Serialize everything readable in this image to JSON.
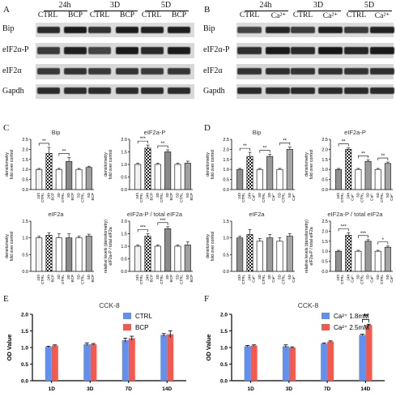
{
  "panels": {
    "A": {
      "letter": "A",
      "timepoints": [
        "24h",
        "3D",
        "5D"
      ],
      "lanes": [
        "CTRL",
        "BCP",
        "CTRL",
        "BCP",
        "CTRL",
        "BCP"
      ],
      "rows": [
        "Bip",
        "eIF2α-P",
        "eIF2α",
        "Gapdh"
      ]
    },
    "B": {
      "letter": "B",
      "timepoints": [
        "24h",
        "3D",
        "5D"
      ],
      "lanes": [
        "CTRL",
        "Ca²⁺",
        "CTRL",
        "Ca²⁺",
        "CTRL",
        "Ca²⁺"
      ],
      "rows": [
        "Bip",
        "eIF2α-P",
        "eIF2α",
        "Gapdh"
      ]
    },
    "C": {
      "letter": "C"
    },
    "D": {
      "letter": "D"
    },
    "E": {
      "letter": "E"
    },
    "F": {
      "letter": "F"
    }
  },
  "chart_data": [
    {
      "id": "C-bip",
      "type": "bar",
      "title": "Bip",
      "ylabel": "densitometry fold over control",
      "ylim": [
        0,
        2.5
      ],
      "yticks": [
        "0.0",
        "0.5",
        "1.0",
        "1.5",
        "2.0",
        "2.5"
      ],
      "categories": [
        "24h CTRL",
        "24h BCP",
        "3D CTRL",
        "3D BCP",
        "5D CTRL",
        "5D BCP"
      ],
      "values": [
        1.0,
        1.8,
        1.0,
        1.4,
        1.0,
        1.1
      ],
      "errors": [
        0.05,
        0.3,
        0.05,
        0.2,
        0.05,
        0.06
      ],
      "sig": [
        {
          "from": 0,
          "to": 1,
          "label": "**"
        },
        {
          "from": 2,
          "to": 3,
          "label": "**"
        }
      ]
    },
    {
      "id": "C-peif",
      "type": "bar",
      "title": "eIF2a-P",
      "ylabel": "densitometry fold over control",
      "ylim": [
        0,
        2.0
      ],
      "yticks": [
        "0.0",
        "0.5",
        "1.0",
        "1.5",
        "2.0"
      ],
      "categories": [
        "24h CTRL",
        "24h BCP",
        "3D CTRL",
        "3D BCP",
        "5D CTRL",
        "5D BCP"
      ],
      "values": [
        1.0,
        1.65,
        1.0,
        1.5,
        1.0,
        1.05
      ],
      "errors": [
        0.05,
        0.12,
        0.05,
        0.08,
        0.05,
        0.08
      ],
      "sig": [
        {
          "from": 0,
          "to": 1,
          "label": "***"
        },
        {
          "from": 2,
          "to": 3,
          "label": "**"
        }
      ]
    },
    {
      "id": "C-eif",
      "type": "bar",
      "title": "eIF2a",
      "ylabel": "densitometry fold over control",
      "ylim": [
        0,
        1.5
      ],
      "yticks": [
        "0.0",
        "0.5",
        "1.0",
        "1.5"
      ],
      "categories": [
        "24h CTRL",
        "24h BCP",
        "3D CTRL",
        "3D BCP",
        "5D CTRL",
        "5D BCP"
      ],
      "values": [
        1.0,
        1.08,
        1.0,
        1.0,
        1.0,
        1.05
      ],
      "errors": [
        0.05,
        0.07,
        0.12,
        0.12,
        0.05,
        0.06
      ],
      "sig": []
    },
    {
      "id": "C-ratio",
      "type": "bar",
      "title": "eIF2a-P / total eIF2a",
      "ylabel": "relative levels (densitometry) eIF2a-P / total eIF2a",
      "ylim": [
        0,
        2.0
      ],
      "yticks": [
        "0.0",
        "0.5",
        "1.0",
        "1.5",
        "2.0"
      ],
      "categories": [
        "24h CTRL",
        "24h BCP",
        "3D CTRL",
        "3D BCP",
        "5D CTRL",
        "5D BCP"
      ],
      "values": [
        1.0,
        1.4,
        1.0,
        1.7,
        1.0,
        1.05
      ],
      "errors": [
        0.05,
        0.1,
        0.05,
        0.08,
        0.05,
        0.12
      ],
      "sig": [
        {
          "from": 0,
          "to": 1,
          "label": "***"
        },
        {
          "from": 2,
          "to": 3,
          "label": "***"
        }
      ]
    },
    {
      "id": "D-bip",
      "type": "bar",
      "title": "Bip",
      "ylabel": "densitometry fold over control",
      "ylim": [
        0,
        2.5
      ],
      "yticks": [
        "0.0",
        "0.5",
        "1.0",
        "1.5",
        "2.0",
        "2.5"
      ],
      "categories": [
        "24h CTRL",
        "24h Ca²⁺",
        "3D CTRL",
        "3D Ca²⁺",
        "5D CTRL",
        "5D Ca²⁺"
      ],
      "values": [
        1.0,
        1.65,
        1.0,
        1.65,
        1.0,
        2.0
      ],
      "errors": [
        0.05,
        0.2,
        0.05,
        0.1,
        0.05,
        0.12
      ],
      "sig": [
        {
          "from": 0,
          "to": 1,
          "label": "**"
        },
        {
          "from": 2,
          "to": 3,
          "label": "**"
        },
        {
          "from": 4,
          "to": 5,
          "label": "**"
        }
      ]
    },
    {
      "id": "D-peif",
      "type": "bar",
      "title": "eIF2a-P",
      "ylabel": "densitometry fold over control",
      "ylim": [
        0,
        2.5
      ],
      "yticks": [
        "0.0",
        "0.5",
        "1.0",
        "1.5",
        "2.0",
        "2.5"
      ],
      "categories": [
        "24h CTRL",
        "24h Ca²⁺",
        "3D CTRL",
        "3D Ca²⁺",
        "5D CTRL",
        "5D Ca²⁺"
      ],
      "values": [
        1.0,
        2.0,
        1.0,
        1.4,
        1.0,
        1.3
      ],
      "errors": [
        0.05,
        0.07,
        0.05,
        0.08,
        0.05,
        0.07
      ],
      "sig": [
        {
          "from": 0,
          "to": 1,
          "label": "**"
        },
        {
          "from": 2,
          "to": 3,
          "label": "**"
        },
        {
          "from": 4,
          "to": 5,
          "label": "**"
        }
      ]
    },
    {
      "id": "D-eif",
      "type": "bar",
      "title": "eIF2a",
      "ylabel": "densitometry fold over control",
      "ylim": [
        0,
        1.5
      ],
      "yticks": [
        "0.0",
        "0.5",
        "1.0",
        "1.5"
      ],
      "categories": [
        "24h CTRL",
        "24h Ca²⁺",
        "3D CTRL",
        "3D Ca²⁺",
        "5D CTRL",
        "5D Ca²⁺"
      ],
      "values": [
        1.0,
        1.1,
        0.9,
        1.0,
        0.9,
        1.05
      ],
      "errors": [
        0.05,
        0.15,
        0.08,
        0.1,
        0.1,
        0.08
      ],
      "sig": []
    },
    {
      "id": "D-ratio",
      "type": "bar",
      "title": "eIF2a-P / total eIF2a",
      "ylabel": "relative levels (densitometry) eIF2a-P / total eIF2a",
      "ylim": [
        0,
        2.5
      ],
      "yticks": [
        "0.0",
        "0.5",
        "1.0",
        "1.5",
        "2.0",
        "2.5"
      ],
      "categories": [
        "24h CTRL",
        "24h Ca²⁺",
        "3D CTRL",
        "3D Ca²⁺",
        "5D CTRL",
        "5D Ca²⁺"
      ],
      "values": [
        1.0,
        1.8,
        1.0,
        1.5,
        1.0,
        1.2
      ],
      "errors": [
        0.05,
        0.12,
        0.05,
        0.08,
        0.05,
        0.06
      ],
      "sig": [
        {
          "from": 0,
          "to": 1,
          "label": "***"
        },
        {
          "from": 2,
          "to": 3,
          "label": "***"
        },
        {
          "from": 4,
          "to": 5,
          "label": "*"
        }
      ]
    },
    {
      "id": "E",
      "type": "bar",
      "title": "CCK-8",
      "ylabel": "OD Value",
      "ylim": [
        0,
        2.0
      ],
      "yticks": [
        "0.0",
        "0.5",
        "1.0",
        "1.5",
        "2.0"
      ],
      "categories": [
        "1D",
        "3D",
        "7D",
        "14D"
      ],
      "series": [
        {
          "name": "CTRL",
          "color": "#6190ef",
          "values": [
            1.02,
            1.1,
            1.22,
            1.38
          ],
          "errors": [
            0.02,
            0.04,
            0.06,
            0.04
          ]
        },
        {
          "name": "BCP",
          "color": "#f05a4f",
          "values": [
            1.06,
            1.1,
            1.28,
            1.4
          ],
          "errors": [
            0.02,
            0.02,
            0.06,
            0.1
          ]
        }
      ],
      "legend": "top-right",
      "sig": []
    },
    {
      "id": "F",
      "type": "bar",
      "title": "CCK-8",
      "ylabel": "OD Value",
      "ylim": [
        0,
        2.0
      ],
      "yticks": [
        "0.0",
        "0.5",
        "1.0",
        "1.5",
        "2.0"
      ],
      "categories": [
        "1D",
        "3D",
        "7D",
        "14D"
      ],
      "series": [
        {
          "name": "Ca²⁺ 1.8mM",
          "color": "#6190ef",
          "values": [
            1.04,
            1.04,
            1.12,
            1.38
          ],
          "errors": [
            0.02,
            0.04,
            0.02,
            0.02
          ]
        },
        {
          "name": "Ca²⁺ 2.5mM",
          "color": "#f05a4f",
          "values": [
            1.06,
            1.0,
            1.18,
            1.68
          ],
          "errors": [
            0.02,
            0.02,
            0.02,
            0.02
          ]
        }
      ],
      "legend": "top-right",
      "sig": [
        {
          "category": 3,
          "label": "**"
        }
      ]
    }
  ]
}
